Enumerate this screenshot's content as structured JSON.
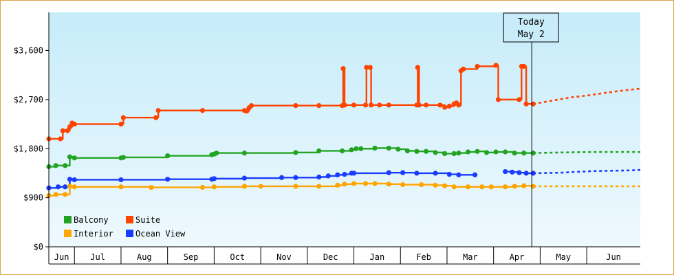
{
  "chart_data": {
    "type": "line",
    "title": "",
    "xlabel": "",
    "ylabel": "",
    "ylim": [
      0,
      4300
    ],
    "y_ticks": [
      0,
      900,
      1800,
      2700,
      3600
    ],
    "y_tick_labels": [
      "$0",
      "$900",
      "$1,800",
      "$2,700",
      "$3,600"
    ],
    "x_range_months": [
      0,
      12.7
    ],
    "x_tick_labels": [
      "Jun",
      "Jul",
      "Aug",
      "Sep",
      "Oct",
      "Nov",
      "Dec",
      "Jan",
      "Feb",
      "Mar",
      "Apr",
      "May",
      "Jun"
    ],
    "x_tick_positions": [
      0.0,
      0.55,
      1.55,
      2.55,
      3.55,
      4.55,
      5.55,
      6.55,
      7.55,
      8.55,
      9.55,
      10.55,
      11.55
    ],
    "today": {
      "label_line1": "Today",
      "label_line2": "May 2",
      "x": 10.37
    },
    "legend_position": "bottom-left",
    "series": [
      {
        "name": "Suite",
        "color": "#ff4400",
        "points": [
          [
            0,
            1980
          ],
          [
            0.25,
            1980
          ],
          [
            0.3,
            2130
          ],
          [
            0.4,
            2130
          ],
          [
            0.45,
            2200
          ],
          [
            0.5,
            2270
          ],
          [
            0.55,
            2250
          ],
          [
            1.55,
            2250
          ],
          [
            1.6,
            2370
          ],
          [
            2.3,
            2370
          ],
          [
            2.35,
            2500
          ],
          [
            3.3,
            2500
          ],
          [
            4.2,
            2500
          ],
          [
            4.25,
            2490
          ],
          [
            4.3,
            2550
          ],
          [
            4.35,
            2590
          ],
          [
            5.3,
            2590
          ],
          [
            5.8,
            2590
          ],
          [
            6.3,
            2590
          ],
          [
            6.32,
            3270
          ],
          [
            6.35,
            2600
          ],
          [
            6.55,
            2600
          ],
          [
            6.8,
            2600
          ],
          [
            6.82,
            3290
          ],
          [
            6.9,
            3290
          ],
          [
            6.92,
            2600
          ],
          [
            7.1,
            2600
          ],
          [
            7.3,
            2600
          ],
          [
            7.9,
            2600
          ],
          [
            7.92,
            3290
          ],
          [
            7.95,
            2600
          ],
          [
            8.1,
            2600
          ],
          [
            8.4,
            2600
          ],
          [
            8.5,
            2560
          ],
          [
            8.6,
            2580
          ],
          [
            8.7,
            2620
          ],
          [
            8.75,
            2640
          ],
          [
            8.8,
            2600
          ],
          [
            8.85,
            3230
          ],
          [
            8.9,
            3260
          ],
          [
            9.2,
            3310
          ],
          [
            9.6,
            3330
          ],
          [
            9.65,
            2700
          ],
          [
            10.1,
            2700
          ],
          [
            10.15,
            3310
          ],
          [
            10.2,
            3310
          ],
          [
            10.25,
            2620
          ],
          [
            10.4,
            2620
          ]
        ],
        "projection": [
          [
            10.4,
            2620
          ],
          [
            10.8,
            2680
          ],
          [
            11.2,
            2740
          ],
          [
            11.6,
            2780
          ],
          [
            12.0,
            2830
          ],
          [
            12.35,
            2870
          ],
          [
            12.7,
            2900
          ]
        ]
      },
      {
        "name": "Balcony",
        "color": "#22a422",
        "points": [
          [
            0,
            1470
          ],
          [
            0.15,
            1490
          ],
          [
            0.35,
            1490
          ],
          [
            0.45,
            1650
          ],
          [
            0.55,
            1630
          ],
          [
            1.55,
            1630
          ],
          [
            1.6,
            1640
          ],
          [
            2.55,
            1670
          ],
          [
            3.5,
            1690
          ],
          [
            3.55,
            1700
          ],
          [
            3.6,
            1720
          ],
          [
            4.2,
            1720
          ],
          [
            5.3,
            1730
          ],
          [
            5.8,
            1760
          ],
          [
            6.3,
            1760
          ],
          [
            6.5,
            1780
          ],
          [
            6.6,
            1800
          ],
          [
            6.7,
            1800
          ],
          [
            7.0,
            1810
          ],
          [
            7.3,
            1810
          ],
          [
            7.5,
            1790
          ],
          [
            7.7,
            1760
          ],
          [
            7.9,
            1750
          ],
          [
            8.1,
            1750
          ],
          [
            8.3,
            1730
          ],
          [
            8.5,
            1710
          ],
          [
            8.7,
            1710
          ],
          [
            8.8,
            1720
          ],
          [
            9.0,
            1740
          ],
          [
            9.2,
            1750
          ],
          [
            9.4,
            1730
          ],
          [
            9.6,
            1740
          ],
          [
            9.8,
            1740
          ],
          [
            10.0,
            1720
          ],
          [
            10.2,
            1720
          ],
          [
            10.4,
            1720
          ]
        ],
        "projection": [
          [
            10.4,
            1720
          ],
          [
            11.0,
            1730
          ],
          [
            11.7,
            1740
          ],
          [
            12.4,
            1740
          ],
          [
            12.7,
            1740
          ]
        ]
      },
      {
        "name": "Ocean View",
        "color": "#1a3cff",
        "points": [
          [
            0,
            1080
          ],
          [
            0.2,
            1100
          ],
          [
            0.35,
            1100
          ],
          [
            0.45,
            1240
          ],
          [
            0.55,
            1230
          ],
          [
            1.55,
            1230
          ],
          [
            2.55,
            1240
          ],
          [
            3.5,
            1240
          ],
          [
            3.55,
            1250
          ],
          [
            4.2,
            1260
          ],
          [
            5.0,
            1270
          ],
          [
            5.3,
            1270
          ],
          [
            5.8,
            1280
          ],
          [
            6.0,
            1300
          ],
          [
            6.2,
            1320
          ],
          [
            6.35,
            1330
          ],
          [
            6.5,
            1350
          ],
          [
            6.55,
            1350
          ],
          [
            7.3,
            1360
          ],
          [
            7.6,
            1360
          ],
          [
            7.9,
            1350
          ],
          [
            8.3,
            1350
          ],
          [
            8.6,
            1330
          ],
          [
            8.8,
            1320
          ],
          [
            9.15,
            1320
          ]
        ],
        "points_b": [
          [
            9.8,
            1380
          ],
          [
            9.95,
            1370
          ],
          [
            10.1,
            1360
          ],
          [
            10.25,
            1350
          ],
          [
            10.4,
            1350
          ]
        ],
        "projection": [
          [
            10.4,
            1350
          ],
          [
            11.0,
            1360
          ],
          [
            11.7,
            1390
          ],
          [
            12.4,
            1400
          ],
          [
            12.7,
            1410
          ]
        ]
      },
      {
        "name": "Interior",
        "color": "#ffa500",
        "points": [
          [
            0,
            940
          ],
          [
            0.15,
            960
          ],
          [
            0.35,
            960
          ],
          [
            0.45,
            1110
          ],
          [
            0.55,
            1100
          ],
          [
            1.55,
            1100
          ],
          [
            2.2,
            1090
          ],
          [
            3.3,
            1090
          ],
          [
            3.55,
            1100
          ],
          [
            4.2,
            1110
          ],
          [
            4.55,
            1110
          ],
          [
            5.3,
            1110
          ],
          [
            5.8,
            1110
          ],
          [
            6.2,
            1130
          ],
          [
            6.35,
            1150
          ],
          [
            6.55,
            1160
          ],
          [
            6.8,
            1160
          ],
          [
            7.0,
            1160
          ],
          [
            7.3,
            1150
          ],
          [
            7.6,
            1140
          ],
          [
            8.0,
            1140
          ],
          [
            8.3,
            1130
          ],
          [
            8.5,
            1120
          ],
          [
            8.7,
            1100
          ],
          [
            9.0,
            1100
          ],
          [
            9.3,
            1100
          ],
          [
            9.5,
            1100
          ],
          [
            9.8,
            1100
          ],
          [
            10.0,
            1110
          ],
          [
            10.2,
            1120
          ],
          [
            10.4,
            1110
          ]
        ],
        "projection": [
          [
            10.4,
            1110
          ],
          [
            11.0,
            1110
          ],
          [
            11.7,
            1110
          ],
          [
            12.4,
            1110
          ],
          [
            12.7,
            1110
          ]
        ]
      }
    ],
    "legend": [
      {
        "name": "Balcony",
        "color": "#22a422"
      },
      {
        "name": "Suite",
        "color": "#ff4400"
      },
      {
        "name": "Interior",
        "color": "#ffa500"
      },
      {
        "name": "Ocean View",
        "color": "#1a3cff"
      }
    ]
  }
}
